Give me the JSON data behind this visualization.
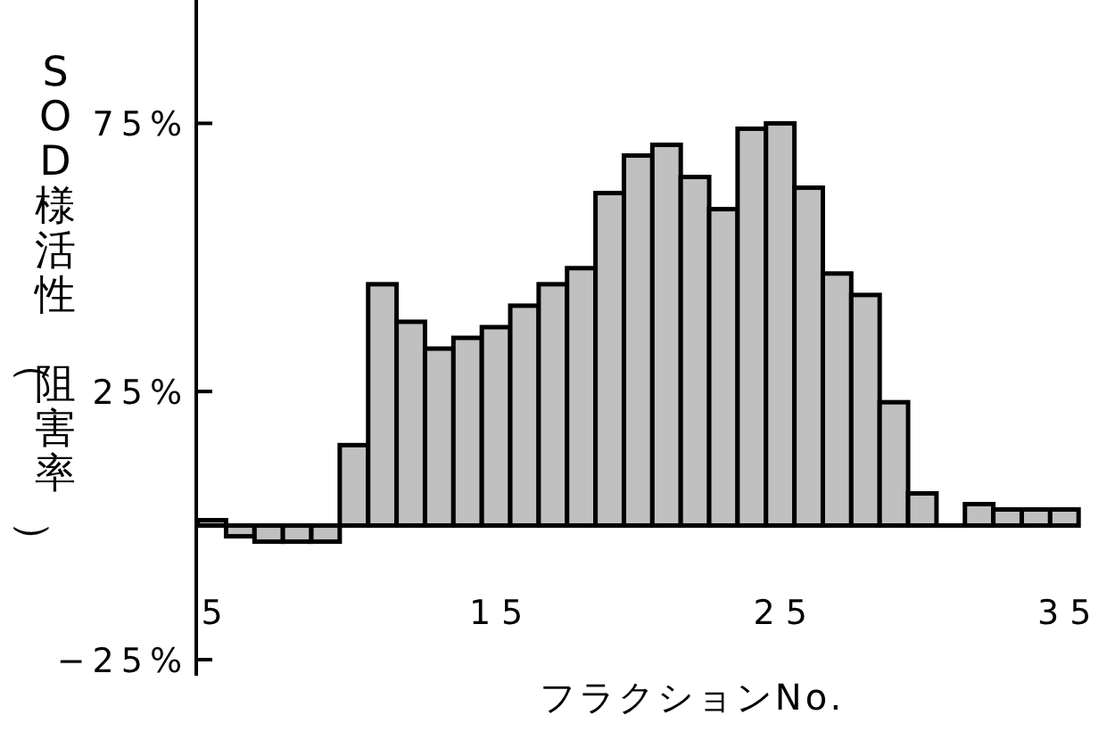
{
  "chart_data": {
    "type": "bar",
    "ylabel": "SOD様活性（阻害率）",
    "xlabel": "フラクションNo.",
    "x": [
      5,
      6,
      7,
      8,
      9,
      10,
      11,
      12,
      13,
      14,
      15,
      16,
      17,
      18,
      19,
      20,
      21,
      22,
      23,
      24,
      25,
      26,
      27,
      28,
      29,
      30,
      31,
      32,
      33,
      34,
      35
    ],
    "values": [
      1,
      -2,
      -3,
      -3,
      -3,
      15,
      45,
      38,
      33,
      35,
      37,
      41,
      45,
      48,
      62,
      69,
      71,
      65,
      59,
      74,
      75,
      63,
      47,
      43,
      23,
      6,
      0,
      4,
      3,
      3,
      3
    ],
    "color": "#c0c0c0",
    "xlim": [
      4.45,
      35.4
    ],
    "xticks": [
      5,
      15,
      25,
      35
    ],
    "ylim": [
      -28,
      98
    ],
    "yticks": [
      {
        "value": 75,
        "label": "75%"
      },
      {
        "value": 25,
        "label": "25%"
      },
      {
        "value": -25,
        "label": "−25%"
      }
    ],
    "grid": false
  }
}
